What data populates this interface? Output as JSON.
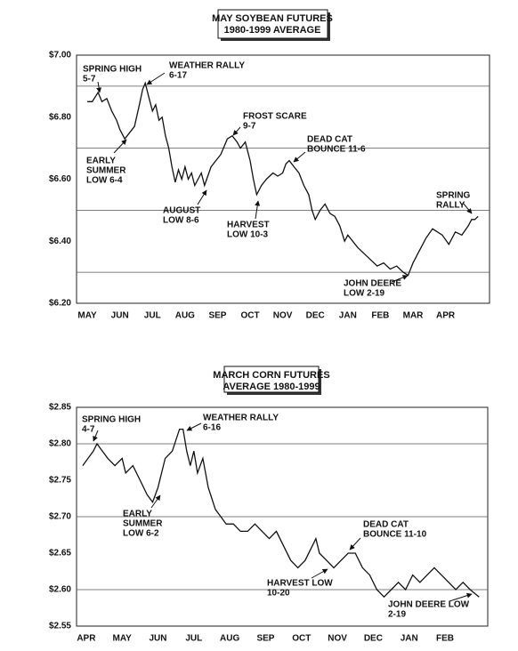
{
  "chart_data": [
    {
      "type": "line",
      "title": "MAY SOYBEAN FUTURES",
      "subtitle": "1980-1999 AVERAGE",
      "color": "#111111",
      "xlim": [
        -0.33,
        12.35
      ],
      "ylim": [
        6.2,
        7.0
      ],
      "xticks": [
        {
          "value": 0,
          "label": "MAY"
        },
        {
          "value": 1,
          "label": "JUN"
        },
        {
          "value": 2,
          "label": "JUL"
        },
        {
          "value": 3,
          "label": "AUG"
        },
        {
          "value": 4,
          "label": "SEP"
        },
        {
          "value": 5,
          "label": "OCT"
        },
        {
          "value": 6,
          "label": "NOV"
        },
        {
          "value": 7,
          "label": "DEC"
        },
        {
          "value": 8,
          "label": "JAN"
        },
        {
          "value": 9,
          "label": "FEB"
        },
        {
          "value": 10,
          "label": "MAR"
        },
        {
          "value": 11,
          "label": "APR"
        }
      ],
      "yticks": [
        {
          "value": 7.0,
          "label": "$7.00"
        },
        {
          "value": 6.8,
          "label": "$6.80"
        },
        {
          "value": 6.6,
          "label": "$6.60"
        },
        {
          "value": 6.4,
          "label": "$6.40"
        },
        {
          "value": 6.2,
          "label": "$6.20"
        }
      ],
      "grid_lines": [
        6.9,
        6.7,
        6.5,
        6.3
      ],
      "x": [
        0,
        0.15,
        0.33,
        0.45,
        0.6,
        0.75,
        0.9,
        1.0,
        1.15,
        1.3,
        1.45,
        1.6,
        1.7,
        1.78,
        1.9,
        2.0,
        2.1,
        2.2,
        2.3,
        2.4,
        2.5,
        2.6,
        2.7,
        2.8,
        2.9,
        3.0,
        3.1,
        3.2,
        3.3,
        3.5,
        3.6,
        3.8,
        3.95,
        4.1,
        4.3,
        4.45,
        4.6,
        4.7,
        4.85,
        5.0,
        5.1,
        5.2,
        5.35,
        5.5,
        5.7,
        5.85,
        6.0,
        6.1,
        6.2,
        6.35,
        6.5,
        6.65,
        6.8,
        6.9,
        7.0,
        7.15,
        7.3,
        7.45,
        7.6,
        7.75,
        7.9,
        8.0,
        8.3,
        8.6,
        8.9,
        9.1,
        9.3,
        9.5,
        9.7,
        9.85,
        10.0,
        10.2,
        10.4,
        10.6,
        10.75,
        10.9,
        11.1,
        11.3,
        11.5,
        11.7,
        11.8,
        11.9,
        12.0
      ],
      "values": [
        6.85,
        6.85,
        6.88,
        6.85,
        6.86,
        6.82,
        6.79,
        6.76,
        6.73,
        6.75,
        6.77,
        6.84,
        6.89,
        6.91,
        6.86,
        6.82,
        6.84,
        6.79,
        6.8,
        6.74,
        6.7,
        6.64,
        6.59,
        6.63,
        6.6,
        6.64,
        6.6,
        6.62,
        6.58,
        6.62,
        6.58,
        6.64,
        6.66,
        6.68,
        6.73,
        6.74,
        6.72,
        6.7,
        6.72,
        6.66,
        6.6,
        6.55,
        6.58,
        6.6,
        6.62,
        6.61,
        6.62,
        6.65,
        6.66,
        6.64,
        6.62,
        6.58,
        6.55,
        6.5,
        6.47,
        6.5,
        6.52,
        6.49,
        6.48,
        6.45,
        6.4,
        6.42,
        6.38,
        6.35,
        6.32,
        6.33,
        6.31,
        6.32,
        6.3,
        6.29,
        6.33,
        6.37,
        6.41,
        6.44,
        6.43,
        6.42,
        6.39,
        6.43,
        6.42,
        6.45,
        6.47,
        6.47,
        6.48
      ],
      "annotations": [
        [
          "SPRING HIGH",
          "5-7"
        ],
        [
          "WEATHER RALLY",
          "6-17"
        ],
        [
          "EARLY",
          "SUMMER",
          "LOW 6-4"
        ],
        [
          "AUGUST",
          "LOW 8-6"
        ],
        [
          "FROST SCARE",
          "9-7"
        ],
        [
          "DEAD CAT",
          "BOUNCE 11-6"
        ],
        [
          "HARVEST",
          "LOW 10-3"
        ],
        [
          "JOHN DEERE",
          "LOW 2-19"
        ],
        [
          "SPRING",
          "RALLY"
        ]
      ]
    },
    {
      "type": "line",
      "title": "MARCH CORN FUTURES",
      "subtitle": "AVERAGE 1980-1999",
      "color": "#111111",
      "xlim": [
        -0.27,
        11.19
      ],
      "ylim": [
        2.55,
        2.85
      ],
      "xticks": [
        {
          "value": 0,
          "label": "APR"
        },
        {
          "value": 1,
          "label": "MAY"
        },
        {
          "value": 2,
          "label": "JUN"
        },
        {
          "value": 3,
          "label": "JUL"
        },
        {
          "value": 4,
          "label": "AUG"
        },
        {
          "value": 5,
          "label": "SEP"
        },
        {
          "value": 6,
          "label": "OCT"
        },
        {
          "value": 7,
          "label": "NOV"
        },
        {
          "value": 8,
          "label": "DEC"
        },
        {
          "value": 9,
          "label": "JAN"
        },
        {
          "value": 10,
          "label": "FEB"
        }
      ],
      "yticks": [
        {
          "value": 2.85,
          "label": "$2.85"
        },
        {
          "value": 2.8,
          "label": "$2.80"
        },
        {
          "value": 2.75,
          "label": "$2.75"
        },
        {
          "value": 2.7,
          "label": "$2.70"
        },
        {
          "value": 2.65,
          "label": "$2.65"
        },
        {
          "value": 2.6,
          "label": "$2.60"
        },
        {
          "value": 2.55,
          "label": "$2.55"
        }
      ],
      "grid_lines": [
        2.8,
        2.7,
        2.6
      ],
      "x": [
        -0.1,
        0.05,
        0.2,
        0.3,
        0.45,
        0.6,
        0.8,
        1.0,
        1.1,
        1.3,
        1.5,
        1.7,
        1.85,
        2.0,
        2.2,
        2.4,
        2.6,
        2.7,
        2.8,
        2.9,
        3.0,
        3.1,
        3.25,
        3.4,
        3.6,
        3.75,
        3.9,
        4.1,
        4.3,
        4.5,
        4.7,
        4.9,
        5.1,
        5.3,
        5.5,
        5.7,
        5.9,
        6.1,
        6.3,
        6.4,
        6.5,
        6.7,
        6.9,
        7.1,
        7.3,
        7.5,
        7.7,
        7.9,
        8.1,
        8.3,
        8.5,
        8.7,
        8.9,
        9.1,
        9.3,
        9.5,
        9.7,
        9.9,
        10.1,
        10.3,
        10.5,
        10.7,
        10.95
      ],
      "values": [
        2.77,
        2.78,
        2.79,
        2.8,
        2.79,
        2.78,
        2.77,
        2.78,
        2.76,
        2.77,
        2.75,
        2.73,
        2.72,
        2.74,
        2.78,
        2.79,
        2.82,
        2.82,
        2.79,
        2.77,
        2.79,
        2.76,
        2.78,
        2.74,
        2.71,
        2.7,
        2.69,
        2.69,
        2.68,
        2.68,
        2.69,
        2.68,
        2.67,
        2.68,
        2.66,
        2.64,
        2.63,
        2.64,
        2.66,
        2.67,
        2.65,
        2.64,
        2.63,
        2.64,
        2.65,
        2.65,
        2.63,
        2.62,
        2.6,
        2.59,
        2.6,
        2.61,
        2.6,
        2.62,
        2.61,
        2.62,
        2.63,
        2.62,
        2.61,
        2.6,
        2.61,
        2.6,
        2.59
      ],
      "annotations": [
        [
          "SPRING HIGH",
          "4-7"
        ],
        [
          "WEATHER RALLY",
          "6-16"
        ],
        [
          "EARLY",
          "SUMMER",
          "LOW 6-2"
        ],
        [
          "DEAD CAT",
          "BOUNCE 11-10"
        ],
        [
          "HARVEST LOW",
          "10-20"
        ],
        [
          "JOHN DEERE LOW",
          "2-19"
        ]
      ]
    }
  ]
}
